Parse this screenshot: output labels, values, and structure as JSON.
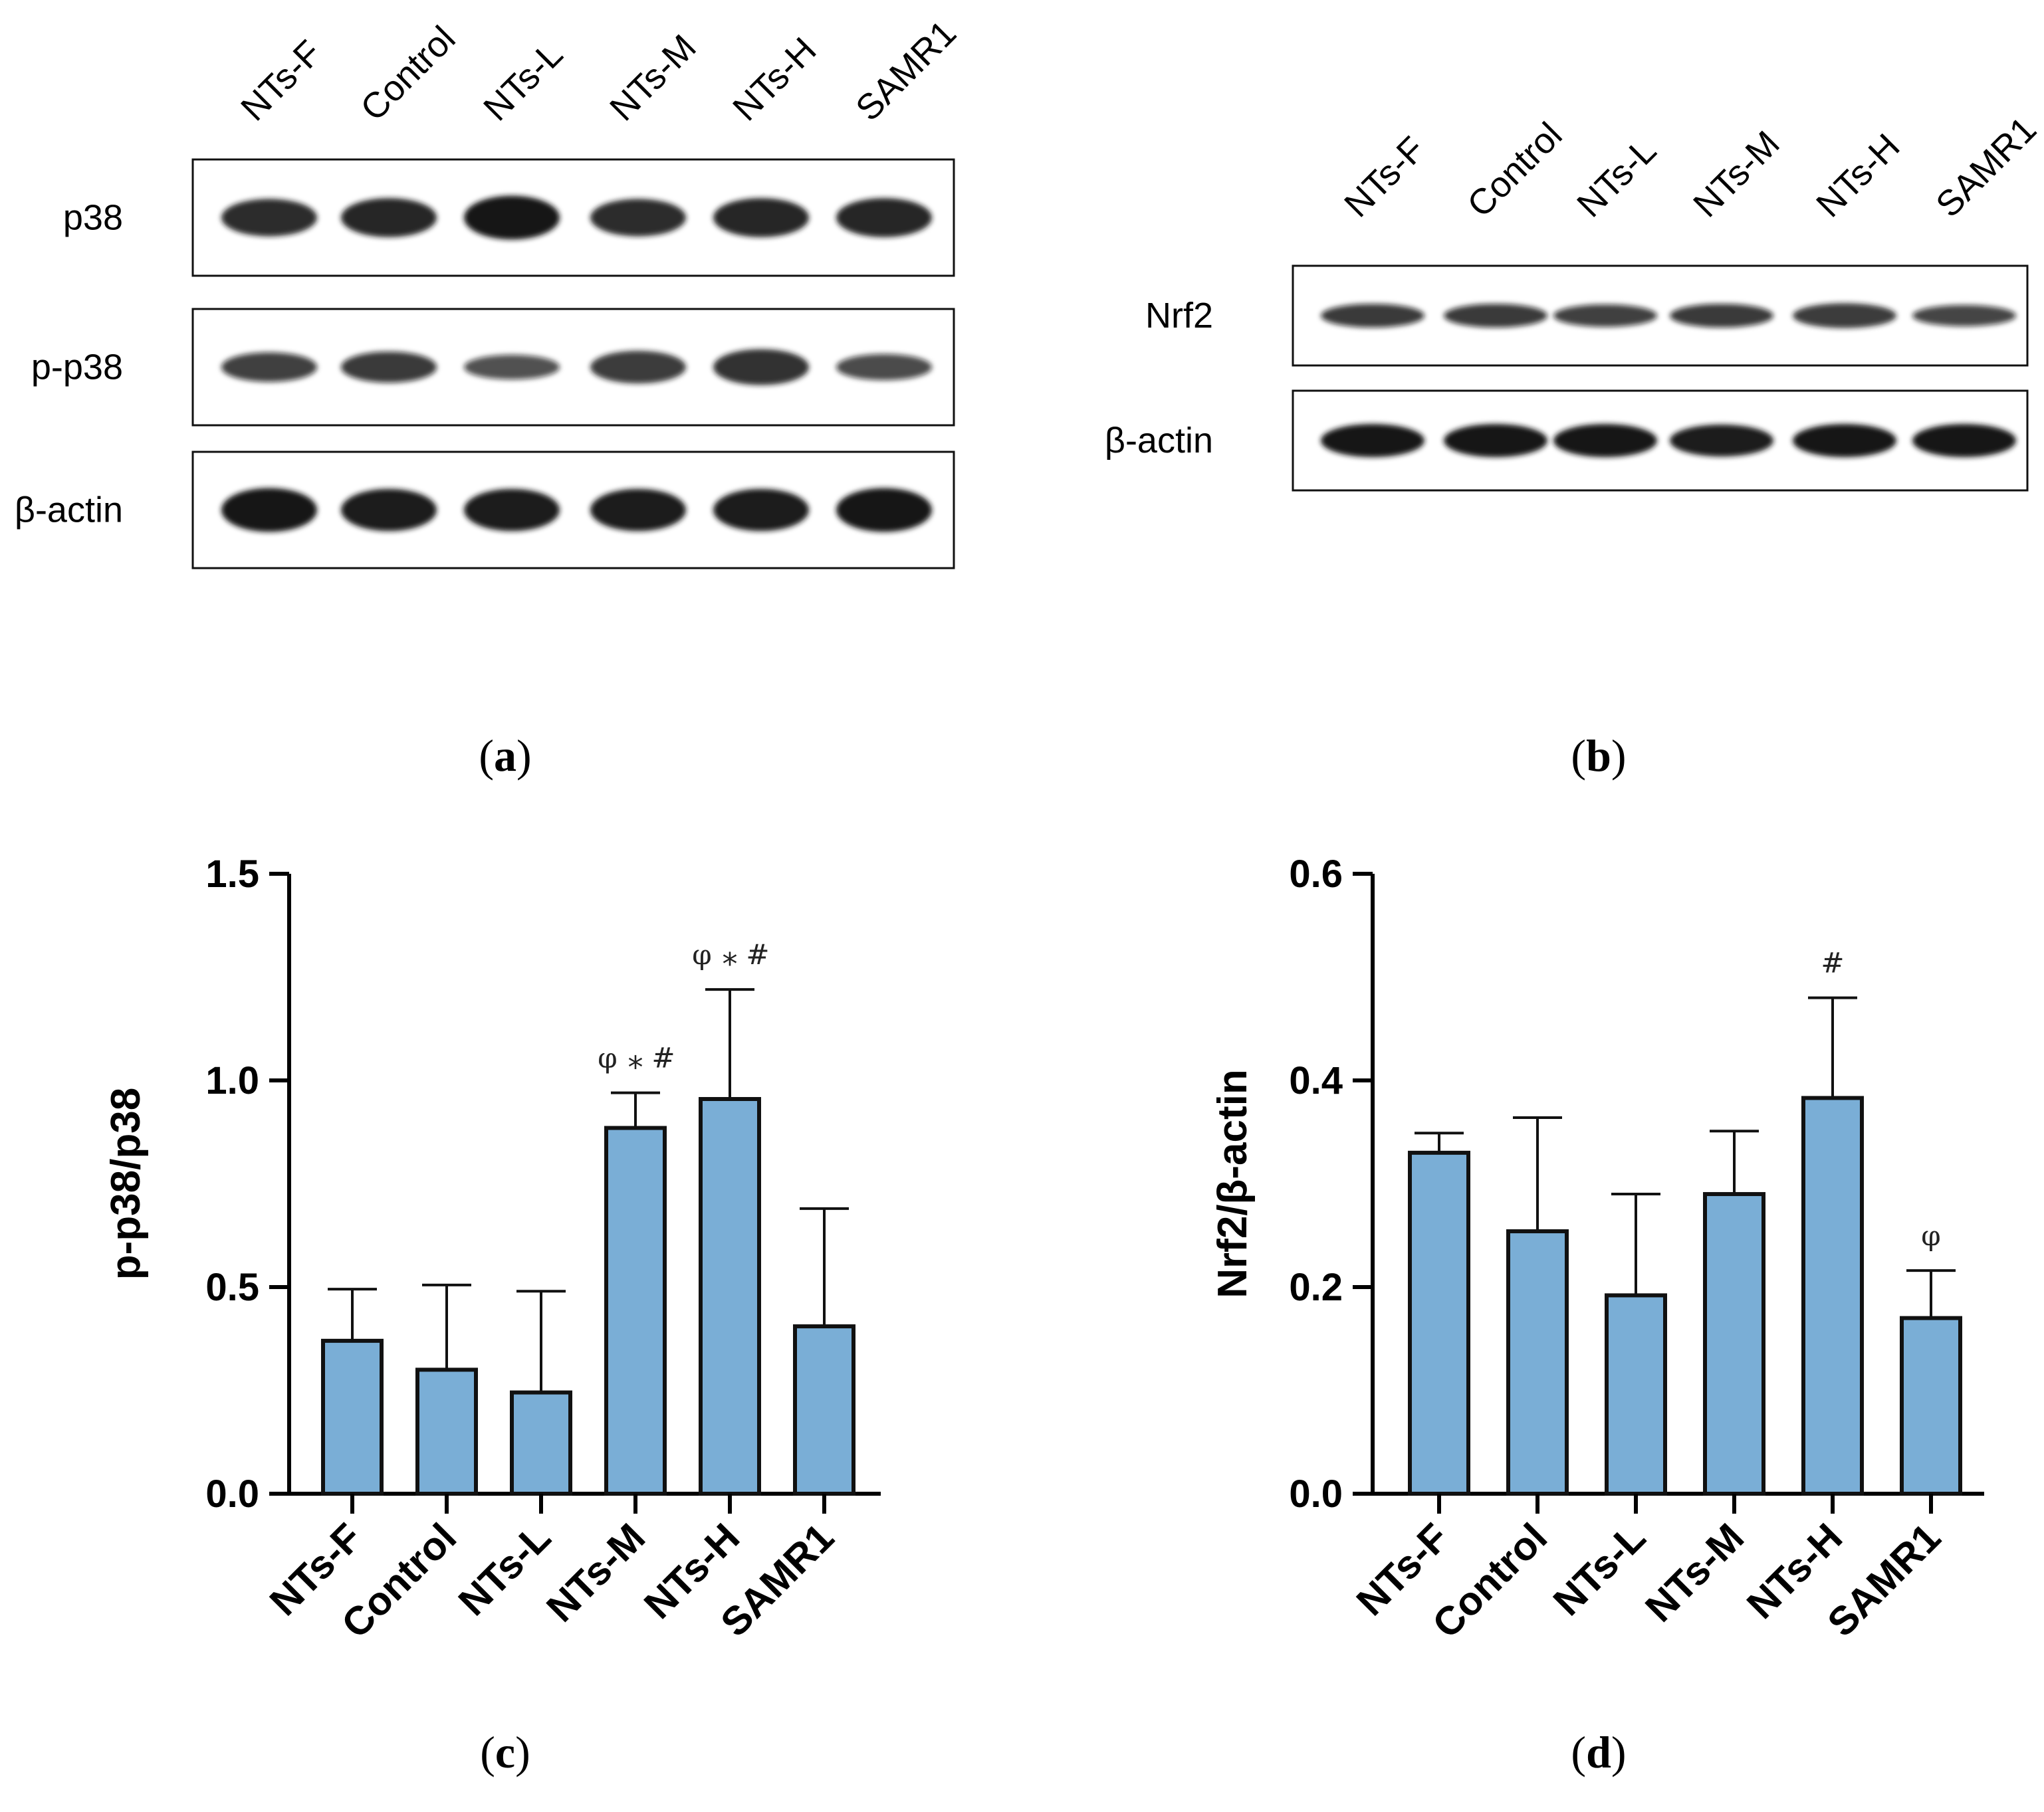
{
  "colors": {
    "bar_fill": "#7aaed6",
    "bar_stroke": "#111111",
    "band": "#141414"
  },
  "blot_a": {
    "lanes": [
      "NTs-F",
      "Control",
      "NTs-L",
      "NTs-M",
      "NTs-H",
      "SAMR1"
    ],
    "rows": [
      {
        "label": "p38",
        "intensity": [
          0.8,
          0.85,
          1.0,
          0.8,
          0.85,
          0.85
        ]
      },
      {
        "label": "p-p38",
        "intensity": [
          0.55,
          0.6,
          0.4,
          0.65,
          0.75,
          0.45
        ]
      },
      {
        "label": "β-actin",
        "intensity": [
          1.0,
          0.95,
          0.95,
          0.95,
          0.95,
          1.0
        ]
      }
    ],
    "panel_label": "a"
  },
  "blot_b": {
    "lanes": [
      "NTs-F",
      "Control",
      "NTs-L",
      "NTs-M",
      "NTs-H",
      "SAMR1"
    ],
    "rows": [
      {
        "label": "Nrf2",
        "intensity": [
          0.6,
          0.6,
          0.55,
          0.6,
          0.65,
          0.5
        ]
      },
      {
        "label": "β-actin",
        "intensity": [
          1.0,
          1.0,
          1.0,
          0.95,
          1.0,
          1.0
        ]
      }
    ],
    "panel_label": "b"
  },
  "chart_data": [
    {
      "type": "bar",
      "panel_label": "c",
      "title": "",
      "xlabel": "",
      "ylabel": "p-p38/p38",
      "categories": [
        "NTs-F",
        "Control",
        "NTs-L",
        "NTs-M",
        "NTs-H",
        "SAMR1"
      ],
      "values": [
        0.37,
        0.3,
        0.245,
        0.885,
        0.955,
        0.405
      ],
      "error": [
        0.125,
        0.205,
        0.245,
        0.085,
        0.265,
        0.285
      ],
      "ylim": [
        0,
        1.5
      ],
      "yticks": [
        0.0,
        0.5,
        1.0,
        1.5
      ],
      "ytick_labels": [
        "0.0",
        "0.5",
        "1.0",
        "1.5"
      ],
      "annotations": [
        {
          "category": "NTs-M",
          "symbols": [
            "φ",
            "*",
            "#"
          ]
        },
        {
          "category": "NTs-H",
          "symbols": [
            "φ",
            "*",
            "#"
          ]
        }
      ]
    },
    {
      "type": "bar",
      "panel_label": "d",
      "title": "",
      "xlabel": "",
      "ylabel": "Nrf2/β-actin",
      "categories": [
        "NTs-F",
        "Control",
        "NTs-L",
        "NTs-M",
        "NTs-H",
        "SAMR1"
      ],
      "values": [
        0.33,
        0.254,
        0.192,
        0.29,
        0.383,
        0.17
      ],
      "error": [
        0.019,
        0.11,
        0.098,
        0.061,
        0.097,
        0.046
      ],
      "ylim": [
        0,
        0.6
      ],
      "yticks": [
        0.0,
        0.2,
        0.4,
        0.6
      ],
      "ytick_labels": [
        "0.0",
        "0.2",
        "0.4",
        "0.6"
      ],
      "annotations": [
        {
          "category": "NTs-H",
          "symbols": [
            "#"
          ]
        },
        {
          "category": "SAMR1",
          "symbols": [
            "φ"
          ]
        }
      ]
    }
  ]
}
